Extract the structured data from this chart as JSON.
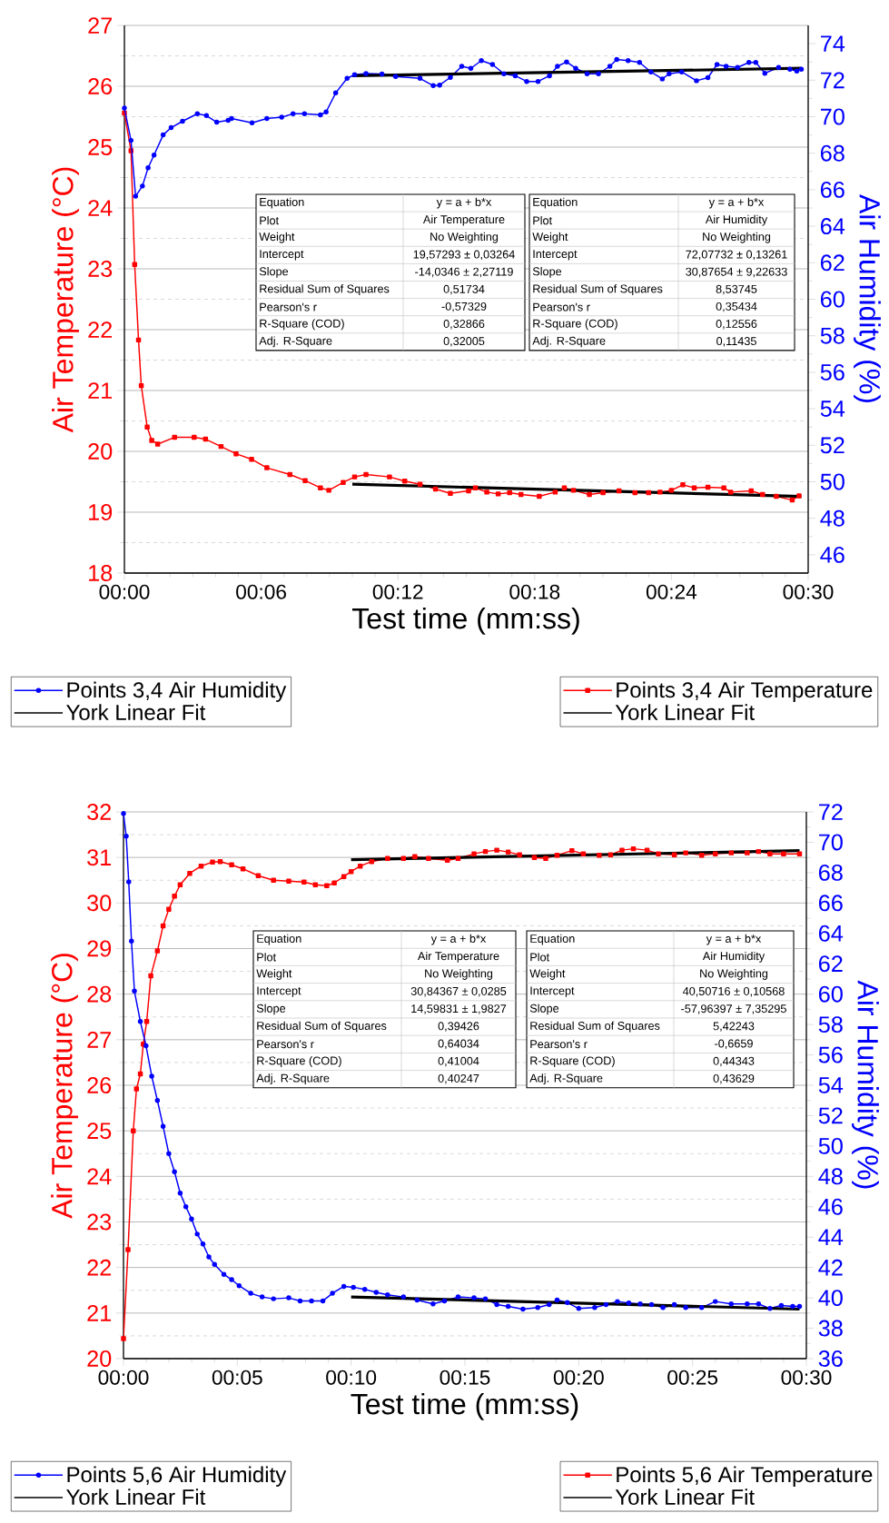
{
  "chart_data": [
    {
      "type": "line",
      "xlabel": "Test time (mm:ss)",
      "ylabel": "Air Temperature (°C)",
      "y2label": "Air Humidity (%)",
      "xlim": [
        0,
        30
      ],
      "xticks": [
        {
          "value": 0,
          "label": "00:00"
        },
        {
          "value": 6,
          "label": "00:06"
        },
        {
          "value": 12,
          "label": "00:12"
        },
        {
          "value": 18,
          "label": "00:18"
        },
        {
          "value": 24,
          "label": "00:24"
        },
        {
          "value": 30,
          "label": "00:30"
        }
      ],
      "ylim": [
        18,
        27
      ],
      "yticks": [
        18,
        19,
        20,
        21,
        22,
        23,
        24,
        25,
        26,
        27
      ],
      "y2lim": [
        45,
        75
      ],
      "y2ticks": [
        46,
        48,
        50,
        52,
        54,
        56,
        58,
        60,
        62,
        64,
        66,
        68,
        70,
        72,
        74
      ],
      "grid": "y",
      "legend": "bottom",
      "series": [
        {
          "name": "Points 3,4 Air Humidity",
          "color": "#0000ff",
          "axis": "y2",
          "marker": "circle",
          "x": [
            0,
            0.29,
            0.49,
            0.79,
            1.04,
            1.3,
            1.7,
            2.05,
            2.55,
            3.2,
            3.6,
            4.05,
            4.55,
            4.7,
            5.6,
            6.25,
            6.9,
            7.4,
            7.9,
            8.6,
            8.85,
            9.27,
            9.77,
            10.1,
            10.6,
            11.3,
            11.9,
            12.97,
            13.55,
            13.83,
            14.3,
            14.8,
            15.2,
            15.66,
            16.15,
            16.65,
            17.15,
            17.65,
            18.15,
            18.65,
            19.0,
            19.4,
            19.8,
            20.3,
            20.8,
            21.3,
            21.6,
            22.1,
            22.6,
            23.1,
            23.6,
            23.9,
            24.45,
            25.1,
            25.6,
            26.0,
            26.4,
            26.9,
            27.4,
            27.7,
            28.1,
            28.7,
            29.2,
            29.5,
            29.7
          ],
          "values": [
            70.47,
            68.7,
            65.64,
            66.2,
            67.2,
            67.9,
            69.0,
            69.4,
            69.75,
            70.16,
            70.06,
            69.7,
            69.8,
            69.9,
            69.66,
            69.9,
            69.97,
            70.16,
            70.16,
            70.1,
            70.26,
            71.3,
            72.1,
            72.3,
            72.36,
            72.34,
            72.2,
            72.1,
            71.7,
            71.73,
            72.15,
            72.76,
            72.65,
            73.07,
            72.86,
            72.35,
            72.24,
            71.93,
            71.93,
            72.24,
            72.76,
            73.0,
            72.65,
            72.35,
            72.35,
            72.76,
            73.13,
            73.07,
            72.97,
            72.45,
            72.07,
            72.35,
            72.45,
            71.97,
            72.14,
            72.86,
            72.76,
            72.7,
            72.97,
            72.97,
            72.38,
            72.7,
            72.6,
            72.5,
            72.6
          ]
        },
        {
          "name": "York Linear Fit",
          "color": "#000000",
          "axis": "y2",
          "marker": "none",
          "x": [
            10,
            29.7
          ],
          "values": [
            72.24,
            72.65
          ]
        },
        {
          "name": "Points 3,4 Air Temperature",
          "color": "#ff0000",
          "axis": "y",
          "marker": "square",
          "x": [
            0,
            0.29,
            0.45,
            0.62,
            0.74,
            1.0,
            1.2,
            1.46,
            2.2,
            3.06,
            3.56,
            4.24,
            4.9,
            5.58,
            6.25,
            7.26,
            7.93,
            8.6,
            8.97,
            9.6,
            10.1,
            10.6,
            11.63,
            12.3,
            12.97,
            13.65,
            14.3,
            15.1,
            15.4,
            15.9,
            16.4,
            16.9,
            17.4,
            18.2,
            18.9,
            19.3,
            19.7,
            20.4,
            21.0,
            21.7,
            22.4,
            23.0,
            23.5,
            24.0,
            24.5,
            25.0,
            25.6,
            26.3,
            26.6,
            27.5,
            28.0,
            28.6,
            29.3,
            29.6
          ],
          "values": [
            25.56,
            24.94,
            23.07,
            21.83,
            21.08,
            20.4,
            20.18,
            20.12,
            20.23,
            20.23,
            20.2,
            20.08,
            19.96,
            19.87,
            19.73,
            19.62,
            19.52,
            19.4,
            19.36,
            19.49,
            19.58,
            19.62,
            19.58,
            19.51,
            19.46,
            19.38,
            19.31,
            19.35,
            19.4,
            19.33,
            19.3,
            19.32,
            19.29,
            19.26,
            19.33,
            19.4,
            19.36,
            19.29,
            19.32,
            19.35,
            19.32,
            19.32,
            19.33,
            19.36,
            19.45,
            19.4,
            19.41,
            19.4,
            19.33,
            19.35,
            19.29,
            19.26,
            19.2,
            19.27
          ]
        },
        {
          "name": "York Linear Fit",
          "color": "#000000",
          "axis": "y",
          "marker": "none",
          "x": [
            10,
            29.7
          ],
          "values": [
            19.46,
            19.26
          ]
        }
      ],
      "annotations": [
        "Equation",
        "y = a + b*x",
        "Plot",
        "Air Temperature",
        "Weight",
        "No Weighting",
        "Intercept",
        "19,57293 ± 0,03264",
        "Slope",
        "-14,0346 ± 2,27119",
        "Residual Sum of Squares",
        "0,51734",
        "Pearson's r",
        "-0,57329",
        "R-Square (COD)",
        "0,32866",
        "Adj. R-Square",
        "0,32005",
        "Equation",
        "y = a + b*x",
        "Plot",
        "Air Humidity",
        "Weight",
        "No Weighting",
        "Intercept",
        "72,07732 ± 0,13261",
        "Slope",
        "30,87654 ± 9,22633",
        "Residual Sum of Squares",
        "8,53745",
        "Pearson's r",
        "0,35434",
        "R-Square (COD)",
        "0,12556",
        "Adj. R-Square",
        "0,11435"
      ]
    },
    {
      "type": "line",
      "xlabel": "Test time (mm:ss)",
      "ylabel": "Air Temperature (°C)",
      "y2label": "Air Humidity (%)",
      "xlim": [
        0,
        30
      ],
      "xticks": [
        {
          "value": 0,
          "label": "00:00"
        },
        {
          "value": 5,
          "label": "00:05"
        },
        {
          "value": 10,
          "label": "00:10"
        },
        {
          "value": 15,
          "label": "00:15"
        },
        {
          "value": 20,
          "label": "00:20"
        },
        {
          "value": 25,
          "label": "00:25"
        },
        {
          "value": 30,
          "label": "00:30"
        }
      ],
      "ylim": [
        20,
        32
      ],
      "yticks": [
        20,
        21,
        22,
        23,
        24,
        25,
        26,
        27,
        28,
        29,
        30,
        31,
        32
      ],
      "y2lim": [
        36,
        72
      ],
      "y2ticks": [
        36,
        38,
        40,
        42,
        44,
        46,
        48,
        50,
        52,
        54,
        56,
        58,
        60,
        62,
        64,
        66,
        68,
        70,
        72
      ],
      "grid": "y",
      "legend": "bottom",
      "series": [
        {
          "name": "Points 5,6 Air Humidity",
          "color": "#0000ff",
          "axis": "y2",
          "marker": "circle",
          "x": [
            0,
            0.12,
            0.23,
            0.35,
            0.48,
            0.74,
            0.99,
            1.24,
            1.49,
            1.74,
            1.99,
            2.24,
            2.49,
            2.74,
            2.99,
            3.24,
            3.49,
            3.75,
            4.0,
            4.41,
            4.75,
            5.08,
            5.59,
            6.09,
            6.59,
            7.26,
            7.76,
            8.26,
            8.76,
            9.18,
            9.68,
            10.1,
            10.6,
            11.1,
            11.6,
            12.3,
            12.9,
            13.6,
            14.1,
            14.7,
            15.4,
            15.9,
            16.4,
            16.9,
            17.55,
            18.2,
            18.7,
            19.05,
            19.5,
            20.0,
            20.7,
            21.2,
            21.7,
            22.2,
            22.7,
            23.2,
            23.7,
            24.2,
            24.7,
            25.4,
            26.0,
            26.7,
            27.4,
            27.9,
            28.4,
            28.9,
            29.4,
            29.7
          ],
          "values": [
            71.9,
            70.4,
            67.4,
            63.5,
            60.2,
            58.2,
            56.6,
            54.6,
            53.0,
            51.3,
            49.5,
            48.3,
            46.9,
            46.0,
            45.2,
            44.2,
            43.55,
            42.7,
            42.2,
            41.55,
            41.2,
            40.8,
            40.3,
            40.06,
            39.94,
            40.0,
            39.8,
            39.8,
            39.8,
            40.3,
            40.76,
            40.7,
            40.56,
            40.36,
            40.2,
            40.06,
            39.86,
            39.6,
            39.8,
            40.06,
            40.0,
            39.94,
            39.56,
            39.44,
            39.26,
            39.36,
            39.56,
            39.86,
            39.69,
            39.3,
            39.36,
            39.56,
            39.76,
            39.66,
            39.6,
            39.56,
            39.36,
            39.56,
            39.36,
            39.36,
            39.76,
            39.6,
            39.6,
            39.6,
            39.3,
            39.5,
            39.44,
            39.44
          ]
        },
        {
          "name": "York Linear Fit",
          "color": "#000000",
          "axis": "y2",
          "marker": "none",
          "x": [
            10,
            29.7
          ],
          "values": [
            40.06,
            39.26
          ]
        },
        {
          "name": "Points 5,6 Air Temperature",
          "color": "#ff0000",
          "axis": "y",
          "marker": "square",
          "x": [
            0,
            0.2,
            0.43,
            0.57,
            0.74,
            0.87,
            1.02,
            1.2,
            1.49,
            1.74,
            1.99,
            2.24,
            2.49,
            2.91,
            3.41,
            3.91,
            4.25,
            4.75,
            5.25,
            5.92,
            6.59,
            7.26,
            7.93,
            8.43,
            8.93,
            9.26,
            9.68,
            10.0,
            10.4,
            10.9,
            11.6,
            12.3,
            12.8,
            13.4,
            14.23,
            14.7,
            15.4,
            15.9,
            16.4,
            16.9,
            17.4,
            18.05,
            18.55,
            19.05,
            19.7,
            20.2,
            20.9,
            21.4,
            21.9,
            22.4,
            23.0,
            23.5,
            24.2,
            24.7,
            25.4,
            26.0,
            26.7,
            27.4,
            27.9,
            28.4,
            29.0,
            29.7
          ],
          "values": [
            20.44,
            22.39,
            25.0,
            25.92,
            26.25,
            26.9,
            27.4,
            28.4,
            28.95,
            29.5,
            29.86,
            30.15,
            30.4,
            30.65,
            30.81,
            30.9,
            30.91,
            30.84,
            30.75,
            30.6,
            30.5,
            30.48,
            30.46,
            30.4,
            30.38,
            30.44,
            30.58,
            30.69,
            30.81,
            30.91,
            30.98,
            30.98,
            31.02,
            30.98,
            30.94,
            30.98,
            31.08,
            31.13,
            31.16,
            31.12,
            31.06,
            31.0,
            30.98,
            31.05,
            31.15,
            31.08,
            31.05,
            31.06,
            31.16,
            31.19,
            31.16,
            31.08,
            31.06,
            31.1,
            31.05,
            31.08,
            31.1,
            31.1,
            31.13,
            31.08,
            31.08,
            31.08
          ]
        },
        {
          "name": "York Linear Fit",
          "color": "#000000",
          "axis": "y",
          "marker": "none",
          "x": [
            10,
            29.7
          ],
          "values": [
            30.95,
            31.15
          ]
        }
      ],
      "annotations": [
        "Equation",
        "y = a + b*x",
        "Plot",
        "Air Temperature",
        "Weight",
        "No Weighting",
        "Intercept",
        "30,84367 ± 0,0285",
        "Slope",
        "14,59831 ± 1,9827",
        "Residual Sum of Squares",
        "0,39426",
        "Pearson's r",
        "0,64034",
        "R-Square (COD)",
        "0,41004",
        "Adj. R-Square",
        "0,40247",
        "Equation",
        "y = a + b*x",
        "Plot",
        "Air Humidity",
        "Weight",
        "No Weighting",
        "Intercept",
        "40,50716 ± 0,10568",
        "Slope",
        "-57,96397 ± 7,35295",
        "Residual Sum of Squares",
        "5,42243",
        "Pearson's r",
        "-0,6659",
        "R-Square (COD)",
        "0,44343",
        "Adj. R-Square",
        "0,43629"
      ]
    }
  ]
}
